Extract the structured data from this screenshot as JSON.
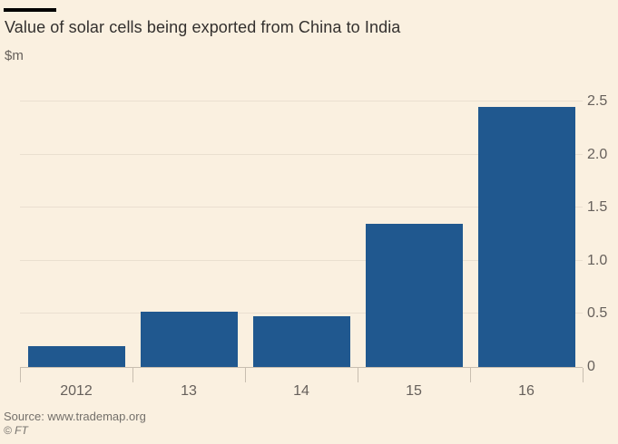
{
  "header": {
    "title": "Value of solar cells being exported from China to India",
    "subtitle": "$m"
  },
  "footer": {
    "source": "Source: www.trademap.org",
    "copyright": "© FT"
  },
  "colors": {
    "background": "#FAF0E0",
    "bar": "#20588F",
    "title_text": "#33302E",
    "axis_text": "#66605B",
    "footer_text": "#74706B",
    "gridline": "#EADFD0",
    "axis_line": "#C8BEB0",
    "title_rule": "#000000"
  },
  "chart_data": {
    "type": "bar",
    "title": "Value of solar cells being exported from China to India",
    "xlabel": "",
    "ylabel": "$m",
    "categories": [
      "2012",
      "13",
      "14",
      "15",
      "16"
    ],
    "values": [
      0.2,
      0.52,
      0.48,
      1.35,
      2.45
    ],
    "ylim": [
      0,
      2.5
    ],
    "yticks": [
      0,
      0.5,
      1.0,
      1.5,
      2.0,
      2.5
    ],
    "ytick_labels": [
      "0",
      "0.5",
      "1.0",
      "1.5",
      "2.0",
      "2.5"
    ],
    "grid": true,
    "y_axis_side": "right",
    "legend": null
  }
}
